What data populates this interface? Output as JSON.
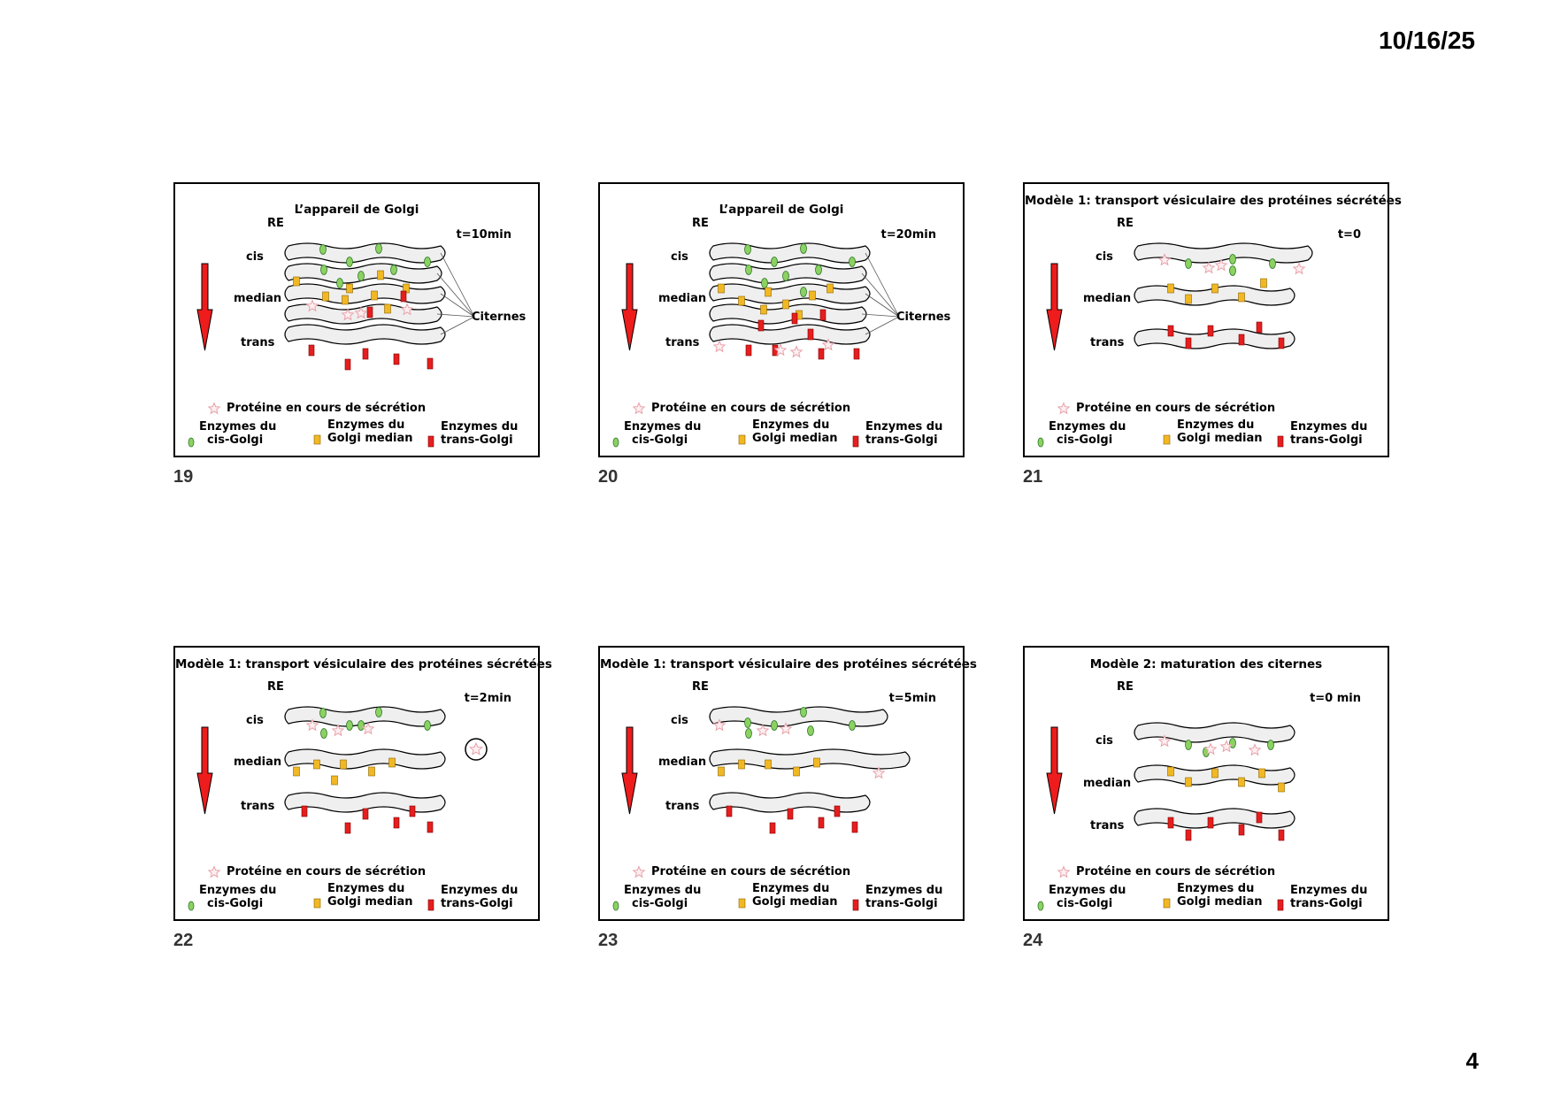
{
  "header": {
    "date": "10/16/25"
  },
  "footer": {
    "page_number": "4"
  },
  "colors": {
    "cis": "#8cd162",
    "median": "#f2b824",
    "trans": "#e61e1e",
    "arrow": "#ee1c1c",
    "cisterna_fill": "#efefef",
    "star": "#e8a2aa"
  },
  "labels": {
    "re": "RE",
    "cis": "cis",
    "median": "median",
    "trans": "trans",
    "citernes": "Citernes",
    "star_legend": "Protéine en cours de sécrétion",
    "legend_cis": "Enzymes du\n  cis-Golgi",
    "legend_median": "Enzymes du\nGolgi median",
    "legend_trans": "Enzymes du\ntrans-Golgi"
  },
  "slides": [
    {
      "number": "19",
      "title": "L’appareil de Golgi",
      "time": "t=10min"
    },
    {
      "number": "20",
      "title": "L’appareil de Golgi",
      "time": "t=20min"
    },
    {
      "number": "21",
      "title": "Modèle 1: transport vésiculaire des protéines sécrétées",
      "time": "t=0"
    },
    {
      "number": "22",
      "title": "Modèle 1: transport vésiculaire des protéines sécrétées",
      "time": "t=2min"
    },
    {
      "number": "23",
      "title": "Modèle 1: transport vésiculaire des protéines sécrétées",
      "time": "t=5min"
    },
    {
      "number": "24",
      "title": "Modèle 2: maturation des citernes",
      "time": "t=0 min"
    }
  ]
}
